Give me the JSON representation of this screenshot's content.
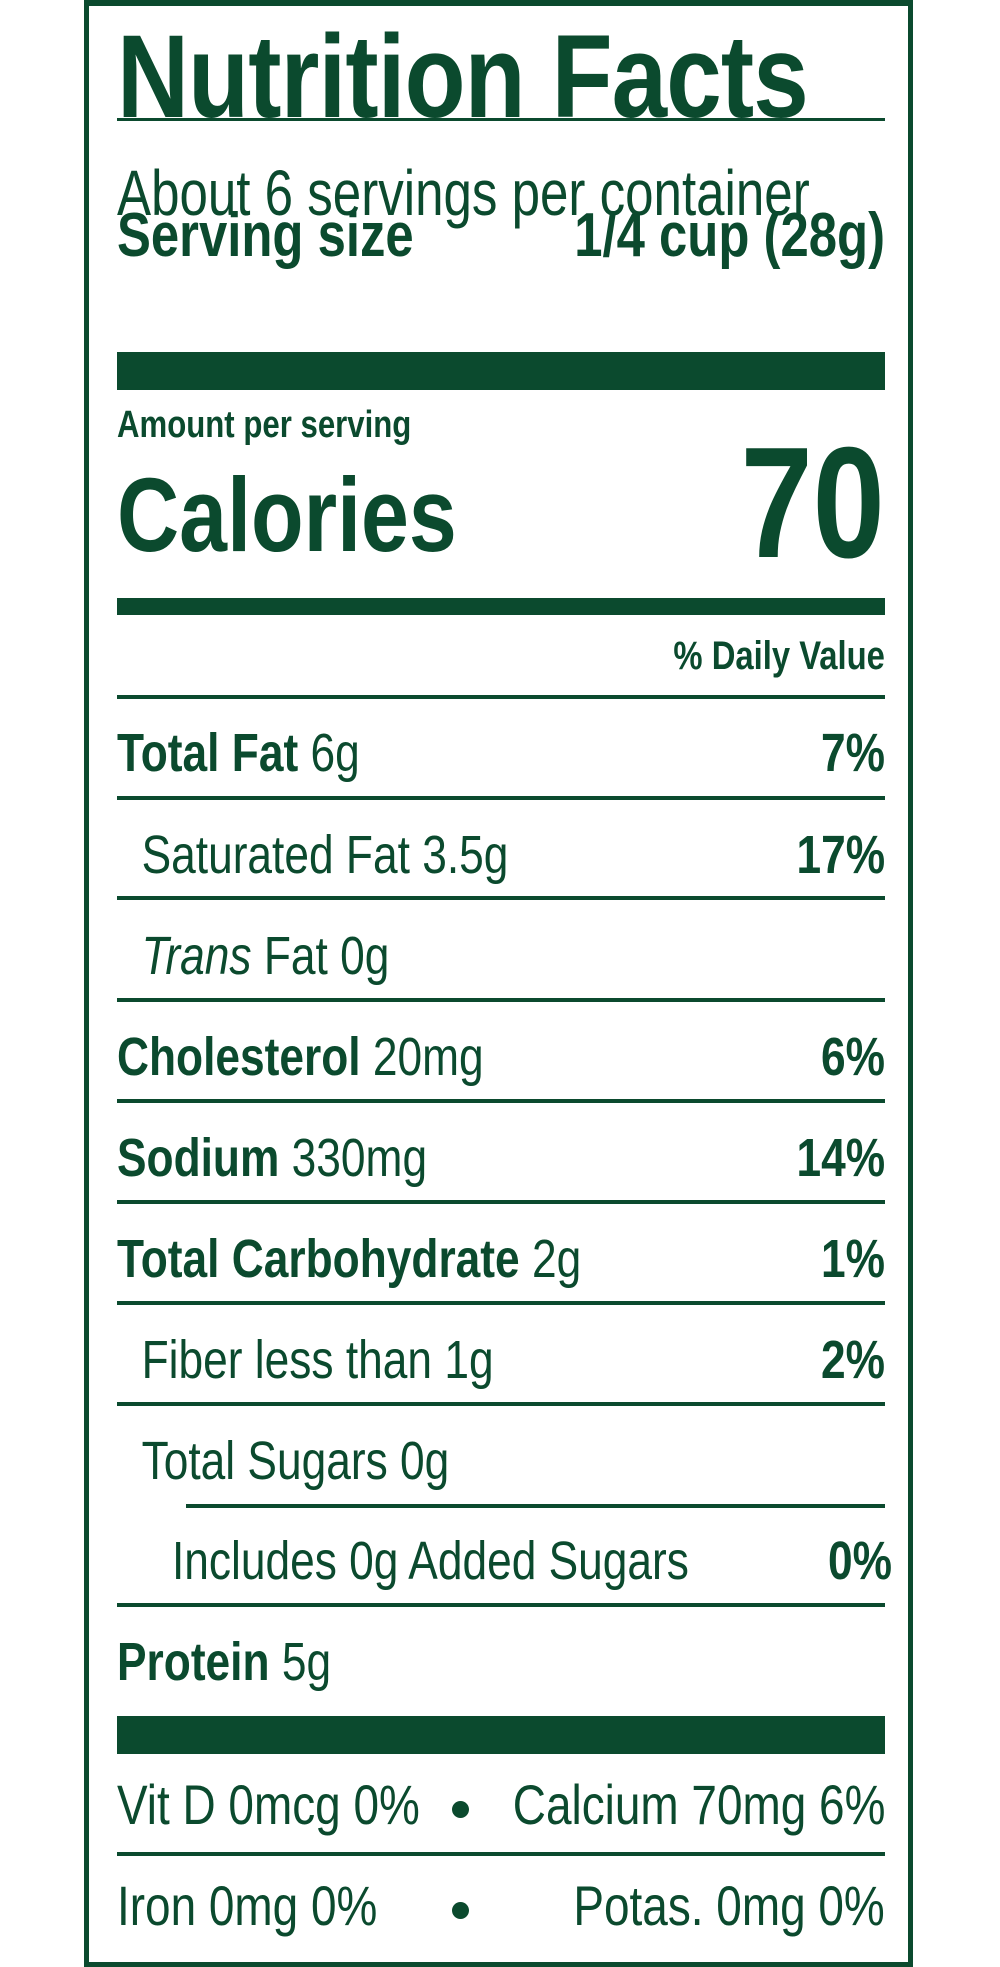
{
  "label": {
    "title": "Nutrition Facts",
    "servings_per_container": "About 6 servings per container",
    "serving_size_label": "Serving size",
    "serving_size_value": "1/4 cup (28g)",
    "amount_per_serving": "Amount per serving",
    "calories_label": "Calories",
    "calories_value": "70",
    "daily_value_header": "% Daily Value",
    "nutrients": [
      {
        "name": "Total Fat",
        "amount": "6g",
        "dv": "7%"
      },
      {
        "name": "Saturated Fat",
        "amount": "3.5g",
        "dv": "17%"
      },
      {
        "name_italic": "Trans",
        "name": "Fat",
        "amount": "0g",
        "dv": ""
      },
      {
        "name": "Cholesterol",
        "amount": "20mg",
        "dv": "6%"
      },
      {
        "name": "Sodium",
        "amount": "330mg",
        "dv": "14%"
      },
      {
        "name": "Total Carbohydrate",
        "amount": "2g",
        "dv": "1%"
      },
      {
        "name": "Fiber less than",
        "amount": "1g",
        "dv": "2%"
      },
      {
        "name": "Total Sugars",
        "amount": "0g",
        "dv": ""
      },
      {
        "name": "Includes 0g Added Sugars",
        "amount": "",
        "dv": "0%"
      },
      {
        "name": "Protein",
        "amount": "5g",
        "dv": ""
      }
    ],
    "vitamins": [
      {
        "text": "Vit D 0mcg 0%"
      },
      {
        "text": "Calcium 70mg 6%"
      },
      {
        "text": "Iron 0mg 0%"
      },
      {
        "text": "Potas. 0mg 0%"
      }
    ],
    "colors": {
      "ink": "#0b4a2e",
      "background": "#ffffff"
    }
  }
}
